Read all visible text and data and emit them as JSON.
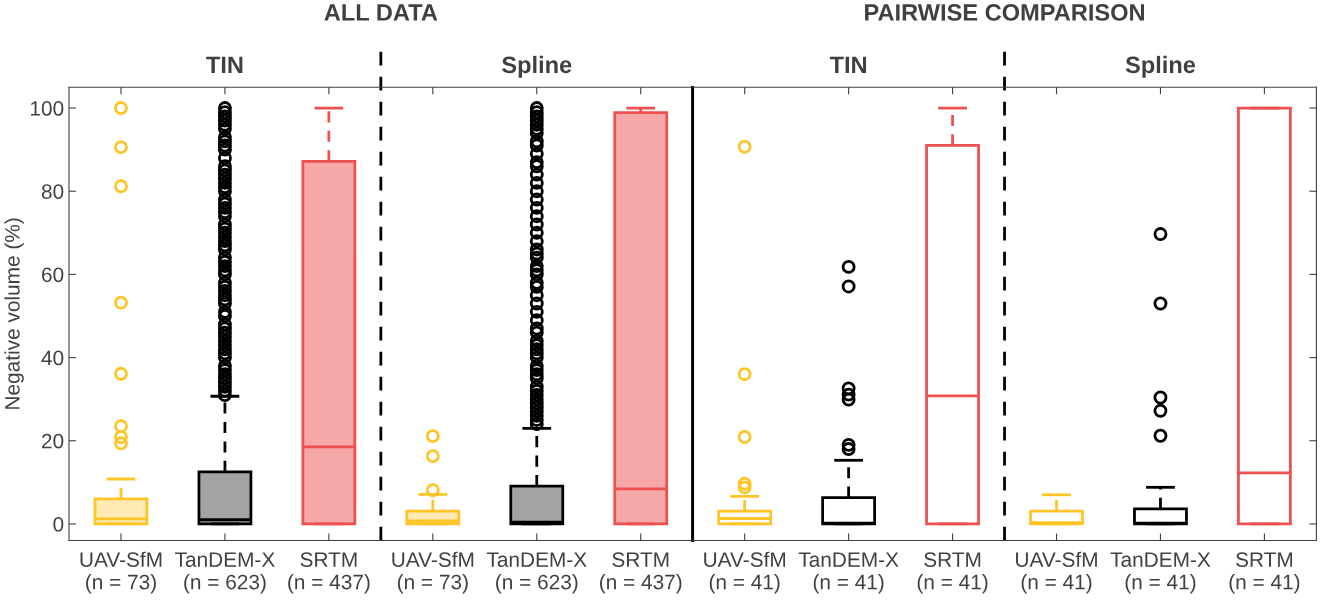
{
  "chart_data": [
    {
      "type": "box",
      "title": "ALL DATA",
      "ylabel": "Negative volume (%)",
      "categories": [
        "UAV-SfM\n(n = 73)",
        "TanDEM-X\n(n = 623)",
        "SRTM\n(n = 437)",
        "UAV-SfM\n(n = 73)",
        "TanDEM-X\n(n = 623)",
        "SRTM\n(n = 437)"
      ],
      "colors": [
        "#ffc425",
        "#000000",
        "#ee5050",
        "#ffc425",
        "#000000",
        "#ee5050"
      ],
      "boxes": [
        {
          "low": 0,
          "q1": 0,
          "median": 1.2,
          "q3": 6.0,
          "high": 10.8,
          "outliers": [
            19.4,
            20.9,
            23.5,
            36.1,
            53.2,
            81.2,
            90.6,
            100
          ]
        },
        {
          "low": 0,
          "q1": 0,
          "median": 1.0,
          "q3": 12.5,
          "high": 30.7,
          "outliers": [
            31,
            32,
            33,
            34,
            35,
            36,
            37,
            38,
            40,
            41,
            42,
            43,
            44,
            45,
            46,
            47,
            48,
            50,
            51,
            53,
            54,
            55,
            56,
            57,
            58,
            60,
            61,
            62,
            63,
            64,
            66,
            67,
            68,
            69,
            70,
            71,
            72,
            74,
            75,
            76,
            77,
            78,
            80,
            81,
            82,
            83,
            84,
            85,
            86,
            88,
            90,
            91,
            92,
            93,
            95,
            96,
            97,
            98,
            99,
            100
          ]
        },
        {
          "low": 0,
          "q1": 0,
          "median": 18.5,
          "q3": 87.2,
          "high": 100
        },
        {
          "low": 0,
          "q1": 0,
          "median": 0.7,
          "q3": 3.1,
          "high": 7.1,
          "outliers": [
            8.1,
            16.3,
            21.1
          ]
        },
        {
          "low": 0,
          "q1": 0,
          "median": 0.4,
          "q3": 9.1,
          "high": 23.0,
          "outliers": [
            24,
            25,
            26,
            27,
            28,
            29,
            30,
            31,
            32,
            33,
            35,
            36,
            37,
            38,
            40,
            41,
            42,
            43,
            44,
            46,
            47,
            49,
            51,
            53,
            55,
            57,
            58,
            60,
            61,
            62,
            64,
            65,
            66,
            68,
            70,
            72,
            74,
            76,
            78,
            80,
            82,
            84,
            86,
            87,
            89,
            91,
            92,
            94,
            95,
            96,
            97,
            98,
            99,
            100
          ]
        },
        {
          "low": 0,
          "q1": 0,
          "median": 8.4,
          "q3": 98.9,
          "high": 100
        }
      ],
      "ylim": [
        -4,
        105
      ],
      "yticks": [
        0,
        20,
        40,
        60,
        80,
        100
      ],
      "grid": false,
      "annotations": [
        "TIN",
        "Spline"
      ]
    },
    {
      "type": "box",
      "title": "PAIRWISE COMPARISON",
      "categories": [
        "UAV-SfM\n(n = 41)",
        "TanDEM-X\n(n = 41)",
        "SRTM\n(n = 41)",
        "UAV-SfM\n(n = 41)",
        "TanDEM-X\n(n = 41)",
        "SRTM\n(n = 41)"
      ],
      "colors": [
        "#ffc425",
        "#000000",
        "#ee5050",
        "#ffc425",
        "#000000",
        "#ee5050"
      ],
      "boxes": [
        {
          "low": 0,
          "q1": 0,
          "median": 1.3,
          "q3": 3.1,
          "high": 6.6,
          "outliers": [
            8.8,
            9.7,
            20.9,
            36.0,
            90.7
          ]
        },
        {
          "low": 0,
          "q1": 0,
          "median": 0.2,
          "q3": 6.3,
          "high": 15.3,
          "outliers": [
            18.0,
            19.0,
            29.9,
            31.1,
            32.6,
            57.1,
            61.8
          ]
        },
        {
          "low": 0,
          "q1": 0,
          "median": 30.8,
          "q3": 91.0,
          "high": 100
        },
        {
          "low": 0,
          "q1": 0,
          "median": 0.3,
          "q3": 3.1,
          "high": 7.0
        },
        {
          "low": 0,
          "q1": 0,
          "median": 0.2,
          "q3": 3.6,
          "high": 8.8,
          "outliers": [
            21.2,
            27.2,
            30.4,
            53.0,
            69.7
          ]
        },
        {
          "low": 0,
          "q1": 0,
          "median": 12.3,
          "q3": 100,
          "high": 100
        }
      ],
      "ylim": [
        -4,
        105
      ],
      "yticks": [
        0,
        20,
        40,
        60,
        80,
        100
      ],
      "grid": false,
      "tick_labels": "x",
      "annotations": [
        "TIN",
        "Spline"
      ]
    }
  ]
}
